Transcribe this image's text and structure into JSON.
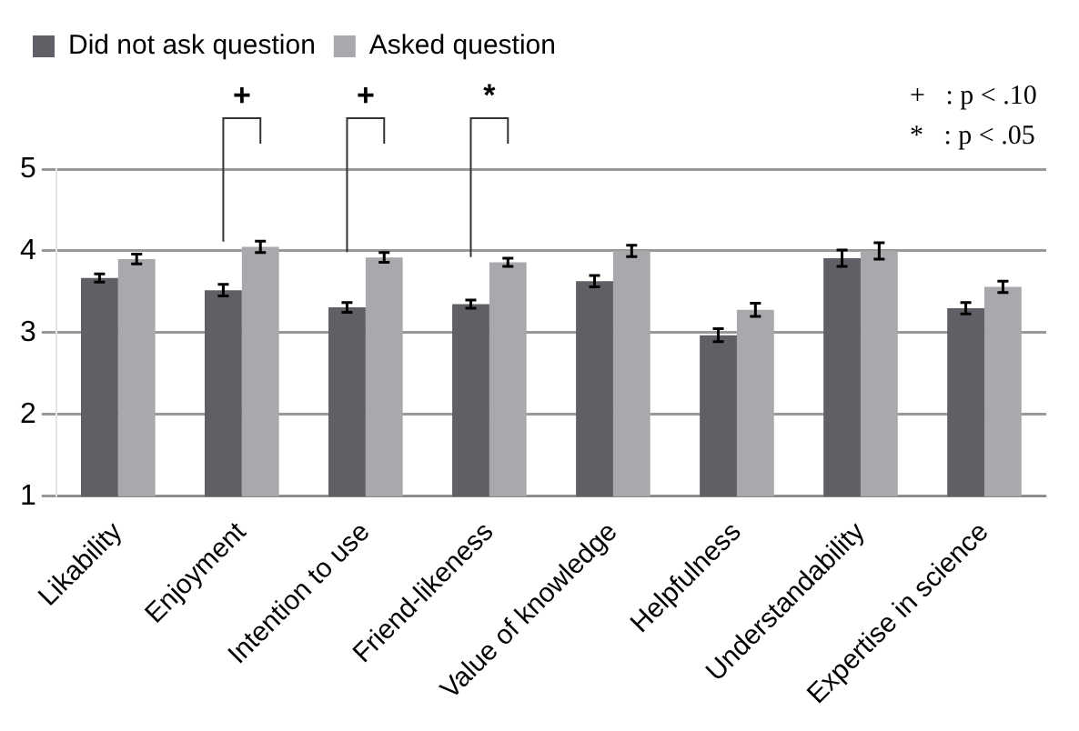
{
  "chart_data": {
    "type": "bar",
    "categories": [
      "Likability",
      "Enjoyment",
      "Intention to use",
      "Friend-likeness",
      "Value of knowledge",
      "Helpfulness",
      "Understandability",
      "Expertise in science"
    ],
    "series": [
      {
        "name": "Did not ask question",
        "color": "#5f6065",
        "values": [
          3.67,
          3.52,
          3.31,
          3.35,
          3.63,
          2.97,
          3.91,
          3.3
        ],
        "errors": [
          0.05,
          0.07,
          0.06,
          0.05,
          0.07,
          0.08,
          0.1,
          0.07
        ]
      },
      {
        "name": "Asked question",
        "color": "#a8a9ad",
        "values": [
          3.9,
          4.05,
          3.92,
          3.86,
          4.0,
          3.28,
          4.0,
          3.56
        ],
        "errors": [
          0.06,
          0.07,
          0.06,
          0.05,
          0.07,
          0.08,
          0.1,
          0.07
        ]
      }
    ],
    "ylim": [
      1,
      5
    ],
    "yticks": [
      1,
      2,
      3,
      4,
      5
    ],
    "grid": "y",
    "legend": "top",
    "annotations": [
      "+",
      "+",
      "*",
      "+   : p < .10",
      "*   : p < .05"
    ]
  }
}
